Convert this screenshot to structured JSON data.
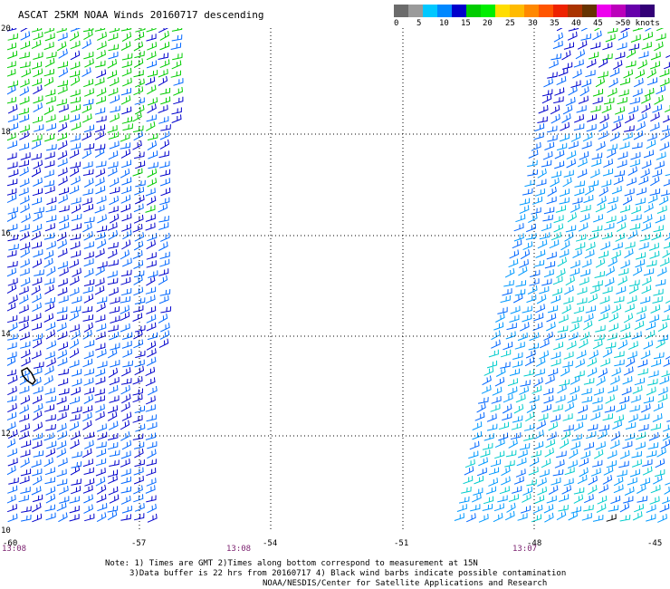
{
  "title": "ASCAT 25KM NOAA Winds 20160717 descending",
  "legend": {
    "colors": [
      "#6b6b6b",
      "#9a9a9a",
      "#00c8ff",
      "#0088ff",
      "#0000cc",
      "#00cc00",
      "#00ee00",
      "#ffdd00",
      "#ffbb00",
      "#ff8800",
      "#ff5500",
      "#ee2200",
      "#aa3300",
      "#663300",
      "#ee00ee",
      "#bb00bb",
      "#6600aa",
      "#330077"
    ],
    "labels": [
      "0",
      "5",
      "10",
      "15",
      "20",
      "25",
      "30",
      "35",
      "40",
      "45",
      ">50 knots"
    ]
  },
  "map": {
    "lat_labels": [
      "20",
      "18",
      "16",
      "14",
      "12",
      "10"
    ],
    "lon_labels": [
      "-60",
      "-57",
      "-54",
      "-51",
      "-48",
      "-45"
    ],
    "times": [
      "13:08",
      "13:08",
      "13:07"
    ],
    "barb_colors": {
      "green": "#00cc00",
      "dark_blue": "#0000cc",
      "blue": "#0066ff",
      "light_blue": "#0099ff",
      "cyan": "#00cccc",
      "black": "#000000"
    }
  },
  "notes": {
    "line1": "Note: 1) Times are GMT 2)Times along bottom correspond to measurement at 15N",
    "line2": "3)Data buffer is 22 hrs from 20160717 4) Black wind barbs indicate possible contamination",
    "line3": "NOAA/NESDIS/Center for Satellite Applications and Research"
  }
}
